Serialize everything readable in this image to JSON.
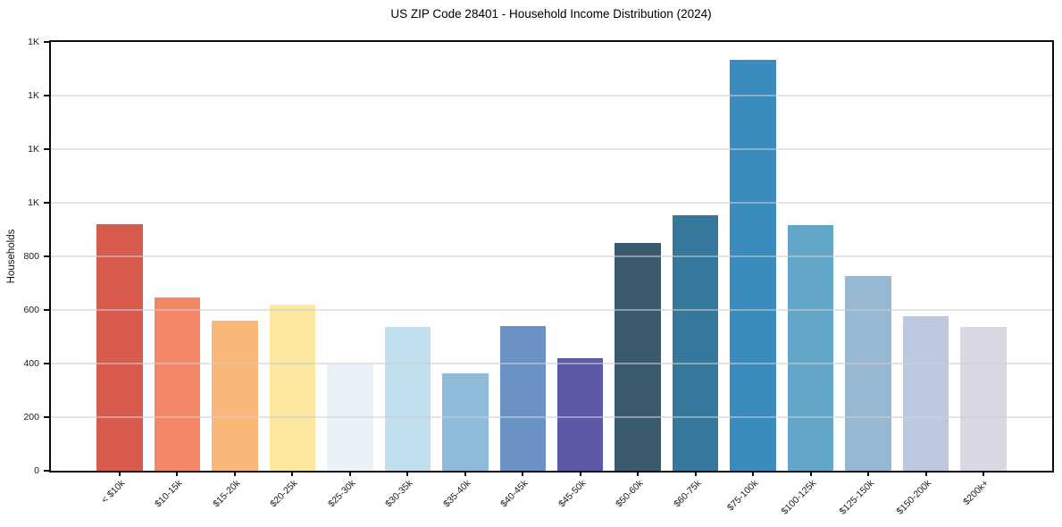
{
  "window": {
    "title": "US ZIP Code 28401 - Household Income Distribution (2024)"
  },
  "chart_data": {
    "type": "bar",
    "title": "US ZIP Code 28401 - Household Income Distribution (2024)",
    "xlabel": "",
    "ylabel": "Households",
    "categories": [
      "< $10k",
      "$10-15k",
      "$15-20k",
      "$20-25k",
      "$25-30k",
      "$30-35k",
      "$35-40k",
      "$40-45k",
      "$45-50k",
      "$50-60k",
      "$60-75k",
      "$75-100k",
      "$100-125k",
      "$125-150k",
      "$150-200k",
      "$200k+"
    ],
    "values": [
      920,
      646,
      561,
      620,
      396,
      537,
      362,
      541,
      419,
      850,
      953,
      1533,
      916,
      726,
      576,
      536
    ],
    "bar_colors": [
      "#d65a4e",
      "#f48765",
      "#fab878",
      "#fde79f",
      "#e9f3f7",
      "#bfe0ec",
      "#8fbbda",
      "#6b92c4",
      "#5c59a8",
      "#3a5b6e",
      "#35789b",
      "#3a8cbe",
      "#62a6c8",
      "#97b8d3",
      "#bdc9de",
      "#d9d9e6"
    ],
    "ylim": [
      0,
      1600
    ],
    "y_ticks": [
      {
        "value": 0,
        "label": "0"
      },
      {
        "value": 200,
        "label": "200"
      },
      {
        "value": 400,
        "label": "400"
      },
      {
        "value": 600,
        "label": "600"
      },
      {
        "value": 800,
        "label": "800"
      },
      {
        "value": 1000,
        "label": "1K"
      },
      {
        "value": 1200,
        "label": "1K"
      },
      {
        "value": 1400,
        "label": "1K"
      },
      {
        "value": 1600,
        "label": "1K"
      }
    ],
    "grid": "horizontal",
    "legend_position": "none",
    "x_tick_rotation_deg": 45,
    "bar_width_fraction": 0.8
  },
  "colors": {
    "background": "#ffffff",
    "frame": "#0d0d0d",
    "gridline_rgba": "rgba(205,205,212,0.55)",
    "tick_label": "#1a1a1a",
    "title_text": "#000000"
  }
}
